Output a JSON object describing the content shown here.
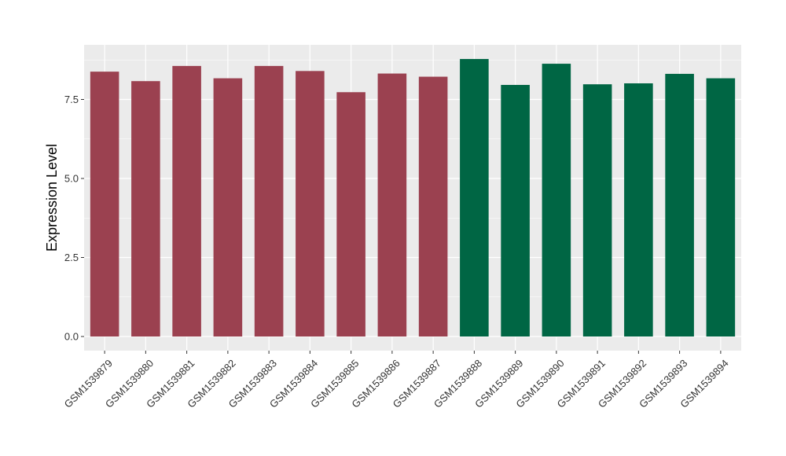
{
  "chart_data": {
    "type": "bar",
    "title": "",
    "xlabel": "",
    "ylabel": "Expression Level",
    "ylim": [
      0,
      9.0
    ],
    "yticks": [
      "0.0",
      "2.5",
      "5.0",
      "7.5"
    ],
    "grid": true,
    "legend": "none",
    "categories": [
      "GSM1539879",
      "GSM1539880",
      "GSM1539881",
      "GSM1539882",
      "GSM1539883",
      "GSM1539884",
      "GSM1539885",
      "GSM1539886",
      "GSM1539887",
      "GSM1539888",
      "GSM1539889",
      "GSM1539890",
      "GSM1539891",
      "GSM1539892",
      "GSM1539893",
      "GSM1539894"
    ],
    "values": [
      8.38,
      8.08,
      8.56,
      8.17,
      8.56,
      8.4,
      7.73,
      8.32,
      8.22,
      8.78,
      7.96,
      8.63,
      7.98,
      8.01,
      8.31,
      8.17
    ],
    "colors": [
      "#9b4150",
      "#9b4150",
      "#9b4150",
      "#9b4150",
      "#9b4150",
      "#9b4150",
      "#9b4150",
      "#9b4150",
      "#9b4150",
      "#006644",
      "#006644",
      "#006644",
      "#006644",
      "#006644",
      "#006644",
      "#006644"
    ],
    "panel_background": "#ebebeb",
    "gridline_color": "#ffffff"
  }
}
